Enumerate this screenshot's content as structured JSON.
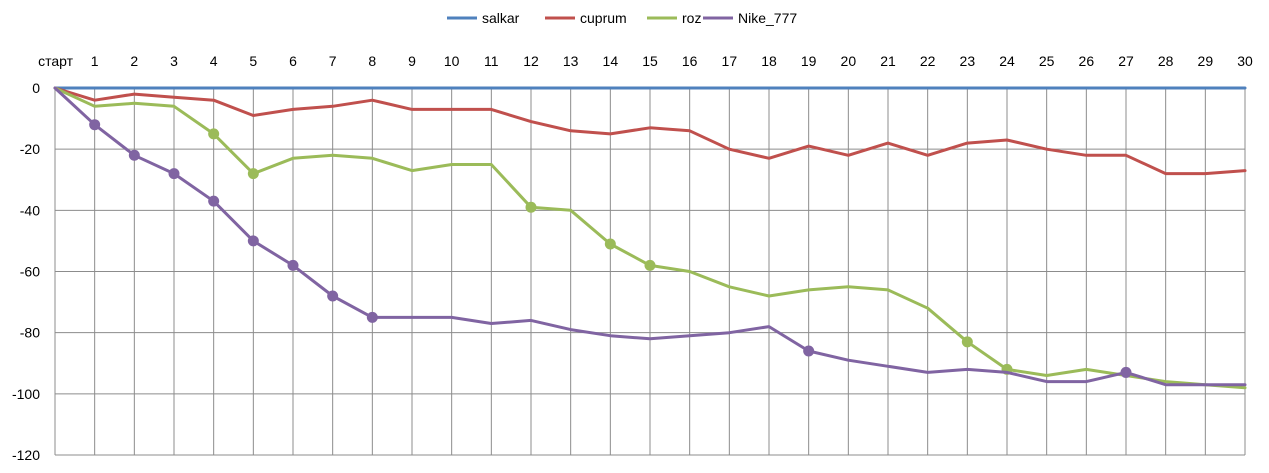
{
  "chart_data": {
    "type": "line",
    "categories": [
      "старт",
      "1",
      "2",
      "3",
      "4",
      "5",
      "6",
      "7",
      "8",
      "9",
      "10",
      "11",
      "12",
      "13",
      "14",
      "15",
      "16",
      "17",
      "18",
      "19",
      "20",
      "21",
      "22",
      "23",
      "24",
      "25",
      "26",
      "27",
      "28",
      "29",
      "30"
    ],
    "ylim": [
      -120,
      0
    ],
    "yticks": [
      0,
      -20,
      -40,
      -60,
      -80,
      -100,
      -120
    ],
    "grid": true,
    "legend_position": "top",
    "series": [
      {
        "name": "salkar",
        "color": "#4f81bd",
        "values": [
          0,
          0,
          0,
          0,
          0,
          0,
          0,
          0,
          0,
          0,
          0,
          0,
          0,
          0,
          0,
          0,
          0,
          0,
          0,
          0,
          0,
          0,
          0,
          0,
          0,
          0,
          0,
          0,
          0,
          0,
          0
        ],
        "markers": []
      },
      {
        "name": "cuprum",
        "color": "#c0504d",
        "values": [
          0,
          -4,
          -2,
          -3,
          -4,
          -9,
          -7,
          -6,
          -4,
          -7,
          -7,
          -7,
          -11,
          -14,
          -15,
          -13,
          -14,
          -20,
          -23,
          -19,
          -22,
          -18,
          -22,
          -18,
          -17,
          -20,
          -22,
          -22,
          -28,
          -28,
          -27
        ],
        "markers": []
      },
      {
        "name": "roz",
        "color": "#9bbb59",
        "values": [
          0,
          -6,
          -5,
          -6,
          -15,
          -28,
          -23,
          -22,
          -23,
          -27,
          -25,
          -25,
          -39,
          -40,
          -51,
          -58,
          -60,
          -65,
          -68,
          -66,
          -65,
          -66,
          -72,
          -83,
          -92,
          -94,
          -92,
          -94,
          -96,
          -97,
          -98
        ],
        "markers": [
          4,
          5,
          12,
          14,
          15,
          23,
          24
        ]
      },
      {
        "name": "Nike_777",
        "color": "#8064a2",
        "values": [
          0,
          -12,
          -22,
          -28,
          -37,
          -50,
          -58,
          -68,
          -75,
          -75,
          -75,
          -77,
          -76,
          -79,
          -81,
          -82,
          -81,
          -80,
          -78,
          -86,
          -89,
          -91,
          -93,
          -92,
          -93,
          -96,
          -96,
          -93,
          -97,
          -97,
          -97
        ],
        "markers": [
          1,
          2,
          3,
          4,
          5,
          6,
          7,
          8,
          19,
          27
        ]
      }
    ]
  }
}
